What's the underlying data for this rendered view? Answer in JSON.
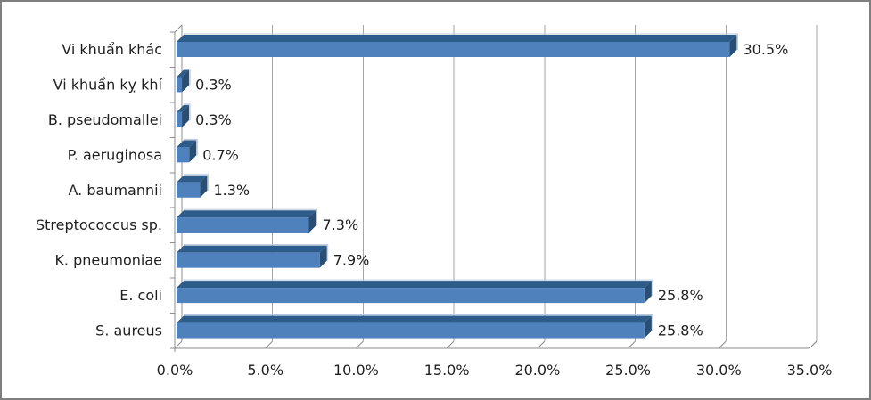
{
  "chart_data": {
    "type": "bar",
    "orientation": "horizontal",
    "style": "3d-bar",
    "title": "",
    "xlabel": "",
    "ylabel": "",
    "categories": [
      "Vi khuẩn khác",
      "Vi khuẩn kỵ khí",
      "B. pseudomallei",
      "P. aeruginosa",
      "A. baumannii",
      "Streptococcus sp.",
      "K. pneumoniae",
      "E. coli",
      "S. aureus"
    ],
    "values": [
      30.5,
      0.3,
      0.3,
      0.7,
      1.3,
      7.3,
      7.9,
      25.8,
      25.8
    ],
    "value_labels": [
      "30.5%",
      "0.3%",
      "0.3%",
      "0.7%",
      "1.3%",
      "7.3%",
      "7.9%",
      "25.8%",
      "25.8%"
    ],
    "xlim": [
      0,
      35
    ],
    "x_tick_step": 5,
    "x_tick_labels": [
      "0.0%",
      "5.0%",
      "10.0%",
      "15.0%",
      "20.0%",
      "25.0%",
      "30.0%",
      "35.0%"
    ],
    "grid": true,
    "legend": false,
    "colors": {
      "bar_front": "#4f81bd",
      "bar_top": "#2e5c8a",
      "bar_end": "#284e74",
      "bar_highlight": "#b6c8e0",
      "gridline": "#a6a6a6",
      "axis": "#8c8c8c",
      "text": "#1f1f1f",
      "border": "#7f7f7f",
      "background": "#ffffff"
    }
  }
}
